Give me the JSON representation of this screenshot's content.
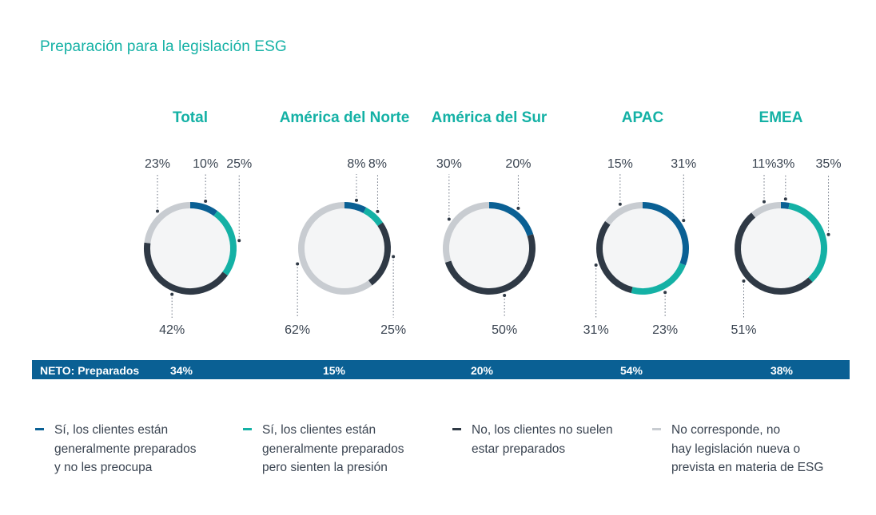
{
  "title": "Preparación para la legislación ESG",
  "colors": {
    "accent": "#14b1a5",
    "prepared_no_concern": "#0a6094",
    "prepared_pressure": "#14b1a5",
    "not_prepared": "#2f3945",
    "not_applicable": "#c8ccd1",
    "donut_fill": "#f4f5f6",
    "neto_bar": "#0a6094"
  },
  "chart_data": {
    "type": "donut",
    "title": "Preparación para la legislación ESG",
    "series_names": [
      "Sí, los clientes están generalmente preparados y no les preocupa",
      "Sí, los clientes están generalmente preparados pero sienten la presión",
      "No, los clientes no suelen estar preparados",
      "No corresponde, no hay legislación nueva o prevista en materia de ESG"
    ],
    "regions": [
      {
        "name": "Total",
        "values": [
          10,
          25,
          42,
          23
        ],
        "labels": [
          "10%",
          "25%",
          "42%",
          "23%"
        ]
      },
      {
        "name": "América del Norte",
        "values": [
          8,
          8,
          25,
          62
        ],
        "labels": [
          "8%",
          "8%",
          "25%",
          "62%"
        ]
      },
      {
        "name": "América del Sur",
        "values": [
          20,
          0,
          50,
          30
        ],
        "labels": [
          "20%",
          "",
          "50%",
          "30%"
        ]
      },
      {
        "name": "APAC",
        "values": [
          31,
          23,
          31,
          15
        ],
        "labels": [
          "31%",
          "23%",
          "31%",
          "15%"
        ]
      },
      {
        "name": "EMEA",
        "values": [
          3,
          35,
          51,
          11
        ],
        "labels": [
          "3%",
          "35%",
          "51%",
          "11%"
        ]
      }
    ]
  },
  "neto": {
    "label": "NETO: Preparados",
    "values": [
      "34%",
      "15%",
      "20%",
      "54%",
      "38%"
    ]
  },
  "legend": [
    {
      "lines": [
        "Sí, los clientes están",
        "generalmente preparados",
        "y no les preocupa"
      ]
    },
    {
      "lines": [
        "Sí, los clientes están",
        "generalmente preparados",
        "pero sienten la presión"
      ]
    },
    {
      "lines": [
        "No, los clientes no suelen",
        "estar preparados"
      ]
    },
    {
      "lines": [
        "No corresponde, no",
        "hay legislación nueva o",
        "prevista en materia de ESG"
      ]
    }
  ]
}
